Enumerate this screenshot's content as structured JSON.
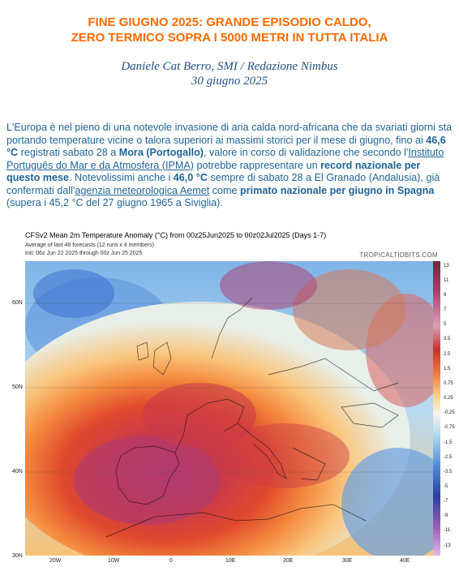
{
  "header": {
    "title_line1": "FINE GIUGNO 2025: GRANDE EPISODIO CALDO,",
    "title_line2": "ZERO TERMICO SOPRA I 5000 METRI IN TUTTA ITALIA",
    "author": "Daniele Cat Berro, SMI / Redazione Nimbus",
    "date": "30 giugno 2025"
  },
  "article": {
    "p1": "L'Europa è nel pieno di una notevole invasione di aria calda nord-africana che da svariati giorni sta portando temperature vicine o talora superiori ai massimi storici per il mese di giugno, fino ai ",
    "p2": "46,6 °C",
    "p3": " registrati sabato 28 a ",
    "p4": "Mora (Portogallo)",
    "p5": ", valore in corso di validazione che secondo l'",
    "p6": "Instituto Português do Mar e da Atmosfera (IPMA)",
    "p7": " potrebbe rappresentare un ",
    "p8": "record nazionale per questo mese",
    "p9": ". Notevolissimi anche i ",
    "p10": "46,0 °C",
    "p11": " sempre di sabato 28 a El Granado (Andalusia), già confermati dall'",
    "p12": "agenzia meteorologica Aemet",
    "p13": " come ",
    "p14": "primato nazionale per giugno in Spagna",
    "p15": " (supera i 45,2 °C del 27 giugno 1965 a Siviglia)."
  },
  "figure": {
    "title": "CFSv2 Mean 2m Temperature Anomaly (°C) from 00z25Jun2025 to 00z02Jul2025 (Days 1-7)",
    "subtitle1": "Average of last 48 forecasts (12 runs x 4 members)",
    "subtitle2": "Init: 06z Jun 22 2025 through 00z Jun 25 2025",
    "credit": "TROPICALTIDBITS.COM",
    "lat_labels": [
      "60N",
      "50N",
      "40N",
      "30N"
    ],
    "lon_labels": [
      "20W",
      "10W",
      "0",
      "10E",
      "20E",
      "30E",
      "40E"
    ],
    "colorbar_labels": [
      "13",
      "11",
      "9",
      "7",
      "5",
      "3.5",
      "2.5",
      "1.5",
      "0.75",
      "0.25",
      "-0.25",
      "-0.75",
      "-1.5",
      "-2.5",
      "-3.5",
      "-5",
      "-7",
      "-9",
      "-11",
      "-13"
    ],
    "colors": {
      "very_hot": "#b03a6e",
      "hot": "#d63a2a",
      "warm": "#f07a3a",
      "mild": "#f8c87a",
      "neutral": "#f4f4ea",
      "cool": "#a9d4ee",
      "cold": "#3c6fd0"
    }
  }
}
